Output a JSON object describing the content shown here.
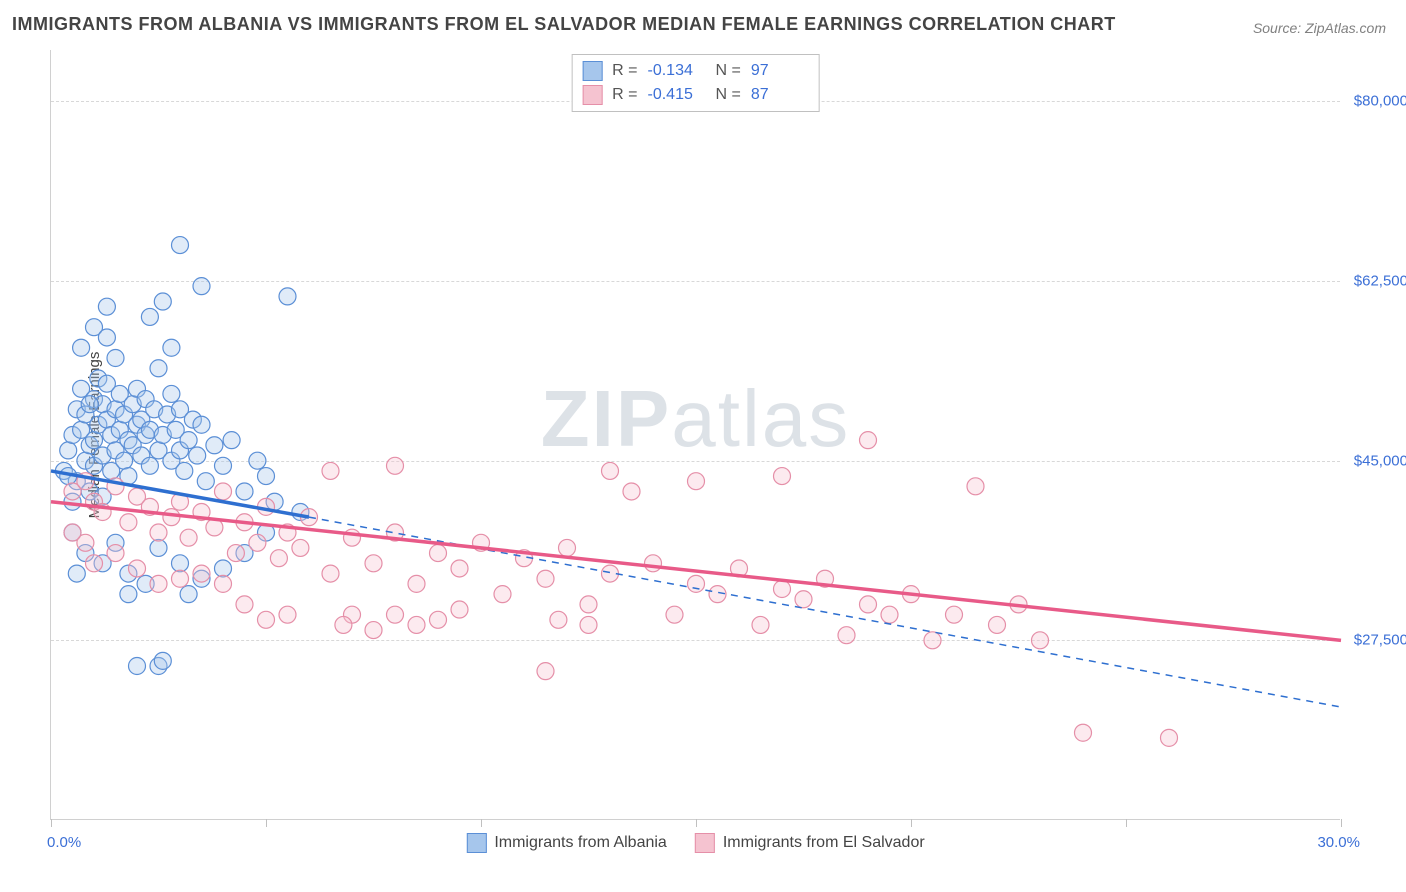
{
  "title": "IMMIGRANTS FROM ALBANIA VS IMMIGRANTS FROM EL SALVADOR MEDIAN FEMALE EARNINGS CORRELATION CHART",
  "source": "Source: ZipAtlas.com",
  "y_axis_title": "Median Female Earnings",
  "watermark_a": "ZIP",
  "watermark_b": "atlas",
  "chart": {
    "type": "scatter",
    "xlim": [
      0,
      30
    ],
    "ylim": [
      10000,
      85000
    ],
    "x_min_label": "0.0%",
    "x_max_label": "30.0%",
    "x_ticks": [
      0,
      5,
      10,
      15,
      20,
      25,
      30
    ],
    "y_gridlines": [
      27500,
      45000,
      62500,
      80000
    ],
    "y_tick_labels": [
      "$27,500",
      "$45,000",
      "$62,500",
      "$80,000"
    ],
    "background_color": "#ffffff",
    "grid_color": "#d8d8d8",
    "axis_color": "#d0d0d0",
    "tick_label_color": "#3b6fd6",
    "marker_radius": 8.5,
    "marker_stroke_width": 1.2,
    "marker_fill_opacity": 0.35,
    "series": [
      {
        "name": "Immigrants from Albania",
        "color_stroke": "#5b8fd6",
        "color_fill": "#a6c6ec",
        "trend_color": "#2e6fd0",
        "R": "-0.134",
        "N": "97",
        "trend": {
          "x1": 0.0,
          "y1": 44000,
          "x2": 6.0,
          "y2": 39500
        },
        "trend_ext": {
          "x1": 6.0,
          "y1": 39500,
          "x2": 30.0,
          "y2": 21000
        },
        "points": [
          [
            0.3,
            44000
          ],
          [
            0.4,
            46000
          ],
          [
            0.5,
            41000
          ],
          [
            0.5,
            47500
          ],
          [
            0.6,
            50000
          ],
          [
            0.6,
            43000
          ],
          [
            0.7,
            48000
          ],
          [
            0.7,
            52000
          ],
          [
            0.8,
            45000
          ],
          [
            0.8,
            49500
          ],
          [
            0.9,
            46500
          ],
          [
            0.9,
            42000
          ],
          [
            1.0,
            51000
          ],
          [
            1.0,
            47000
          ],
          [
            1.0,
            44500
          ],
          [
            1.1,
            53000
          ],
          [
            1.1,
            48500
          ],
          [
            1.2,
            50500
          ],
          [
            1.2,
            45500
          ],
          [
            1.2,
            41500
          ],
          [
            1.3,
            49000
          ],
          [
            1.3,
            52500
          ],
          [
            1.4,
            47500
          ],
          [
            1.4,
            44000
          ],
          [
            1.5,
            50000
          ],
          [
            1.5,
            46000
          ],
          [
            1.5,
            55000
          ],
          [
            1.6,
            48000
          ],
          [
            1.6,
            51500
          ],
          [
            1.7,
            45000
          ],
          [
            1.7,
            49500
          ],
          [
            1.8,
            47000
          ],
          [
            1.8,
            43500
          ],
          [
            1.9,
            50500
          ],
          [
            1.9,
            46500
          ],
          [
            2.0,
            48500
          ],
          [
            2.0,
            52000
          ],
          [
            2.1,
            45500
          ],
          [
            2.1,
            49000
          ],
          [
            2.2,
            47500
          ],
          [
            2.2,
            51000
          ],
          [
            2.3,
            44500
          ],
          [
            2.3,
            48000
          ],
          [
            2.4,
            50000
          ],
          [
            2.5,
            46000
          ],
          [
            2.5,
            54000
          ],
          [
            2.6,
            47500
          ],
          [
            2.7,
            49500
          ],
          [
            2.8,
            45000
          ],
          [
            2.8,
            51500
          ],
          [
            2.9,
            48000
          ],
          [
            3.0,
            46000
          ],
          [
            3.0,
            50000
          ],
          [
            3.1,
            44000
          ],
          [
            3.2,
            47000
          ],
          [
            3.3,
            49000
          ],
          [
            3.4,
            45500
          ],
          [
            3.5,
            48500
          ],
          [
            3.6,
            43000
          ],
          [
            3.8,
            46500
          ],
          [
            4.0,
            44500
          ],
          [
            4.2,
            47000
          ],
          [
            4.5,
            42000
          ],
          [
            4.8,
            45000
          ],
          [
            5.0,
            43500
          ],
          [
            5.2,
            41000
          ],
          [
            0.5,
            38000
          ],
          [
            0.8,
            36000
          ],
          [
            1.2,
            35000
          ],
          [
            1.5,
            37000
          ],
          [
            1.8,
            34000
          ],
          [
            2.2,
            33000
          ],
          [
            2.5,
            36500
          ],
          [
            3.0,
            35000
          ],
          [
            3.5,
            33500
          ],
          [
            4.0,
            34500
          ],
          [
            0.7,
            56000
          ],
          [
            1.0,
            58000
          ],
          [
            1.3,
            57000
          ],
          [
            2.3,
            59000
          ],
          [
            2.6,
            60500
          ],
          [
            2.8,
            56000
          ],
          [
            3.5,
            62000
          ],
          [
            5.5,
            61000
          ],
          [
            3.0,
            66000
          ],
          [
            1.3,
            60000
          ],
          [
            2.5,
            25000
          ],
          [
            2.6,
            25500
          ],
          [
            2.0,
            25000
          ],
          [
            0.6,
            34000
          ],
          [
            1.8,
            32000
          ],
          [
            3.2,
            32000
          ],
          [
            4.5,
            36000
          ],
          [
            5.0,
            38000
          ],
          [
            5.8,
            40000
          ],
          [
            0.4,
            43500
          ],
          [
            0.9,
            50500
          ]
        ]
      },
      {
        "name": "Immigrants from El Salvador",
        "color_stroke": "#e58fa8",
        "color_fill": "#f5c3d0",
        "trend_color": "#e85a88",
        "R": "-0.415",
        "N": "87",
        "trend": {
          "x1": 0.0,
          "y1": 41000,
          "x2": 30.0,
          "y2": 27500
        },
        "points": [
          [
            0.5,
            42000
          ],
          [
            0.8,
            43000
          ],
          [
            1.0,
            41000
          ],
          [
            1.2,
            40000
          ],
          [
            1.5,
            42500
          ],
          [
            1.8,
            39000
          ],
          [
            2.0,
            41500
          ],
          [
            2.3,
            40500
          ],
          [
            2.5,
            38000
          ],
          [
            2.8,
            39500
          ],
          [
            3.0,
            41000
          ],
          [
            3.2,
            37500
          ],
          [
            3.5,
            40000
          ],
          [
            3.8,
            38500
          ],
          [
            4.0,
            42000
          ],
          [
            4.3,
            36000
          ],
          [
            4.5,
            39000
          ],
          [
            4.8,
            37000
          ],
          [
            5.0,
            40500
          ],
          [
            5.3,
            35500
          ],
          [
            5.5,
            38000
          ],
          [
            5.8,
            36500
          ],
          [
            6.0,
            39500
          ],
          [
            6.5,
            34000
          ],
          [
            7.0,
            37500
          ],
          [
            7.5,
            35000
          ],
          [
            8.0,
            38000
          ],
          [
            8.0,
            44500
          ],
          [
            8.5,
            33000
          ],
          [
            9.0,
            36000
          ],
          [
            9.5,
            34500
          ],
          [
            10.0,
            37000
          ],
          [
            10.5,
            32000
          ],
          [
            11.0,
            35500
          ],
          [
            11.5,
            33500
          ],
          [
            12.0,
            36500
          ],
          [
            12.5,
            31000
          ],
          [
            13.0,
            34000
          ],
          [
            13.0,
            44000
          ],
          [
            13.5,
            42000
          ],
          [
            14.0,
            35000
          ],
          [
            14.5,
            30000
          ],
          [
            15.0,
            33000
          ],
          [
            15.0,
            43000
          ],
          [
            15.5,
            32000
          ],
          [
            16.0,
            34500
          ],
          [
            16.5,
            29000
          ],
          [
            17.0,
            32500
          ],
          [
            17.0,
            43500
          ],
          [
            17.5,
            31500
          ],
          [
            18.0,
            33500
          ],
          [
            18.5,
            28000
          ],
          [
            19.0,
            31000
          ],
          [
            19.0,
            47000
          ],
          [
            19.5,
            30000
          ],
          [
            20.0,
            32000
          ],
          [
            20.5,
            27500
          ],
          [
            21.0,
            30000
          ],
          [
            21.5,
            42500
          ],
          [
            22.0,
            29000
          ],
          [
            22.5,
            31000
          ],
          [
            23.0,
            27500
          ],
          [
            24.0,
            18500
          ],
          [
            26.0,
            18000
          ],
          [
            11.5,
            24500
          ],
          [
            11.8,
            29500
          ],
          [
            12.5,
            29000
          ],
          [
            9.0,
            29500
          ],
          [
            9.5,
            30500
          ],
          [
            8.5,
            29000
          ],
          [
            8.0,
            30000
          ],
          [
            7.5,
            28500
          ],
          [
            7.0,
            30000
          ],
          [
            6.8,
            29000
          ],
          [
            6.5,
            44000
          ],
          [
            5.5,
            30000
          ],
          [
            5.0,
            29500
          ],
          [
            4.5,
            31000
          ],
          [
            4.0,
            33000
          ],
          [
            3.5,
            34000
          ],
          [
            3.0,
            33500
          ],
          [
            2.5,
            33000
          ],
          [
            2.0,
            34500
          ],
          [
            1.5,
            36000
          ],
          [
            1.0,
            35000
          ],
          [
            0.8,
            37000
          ],
          [
            0.5,
            38000
          ]
        ]
      }
    ]
  },
  "legend_bottom": {
    "items": [
      "Immigrants from Albania",
      "Immigrants from El Salvador"
    ]
  }
}
